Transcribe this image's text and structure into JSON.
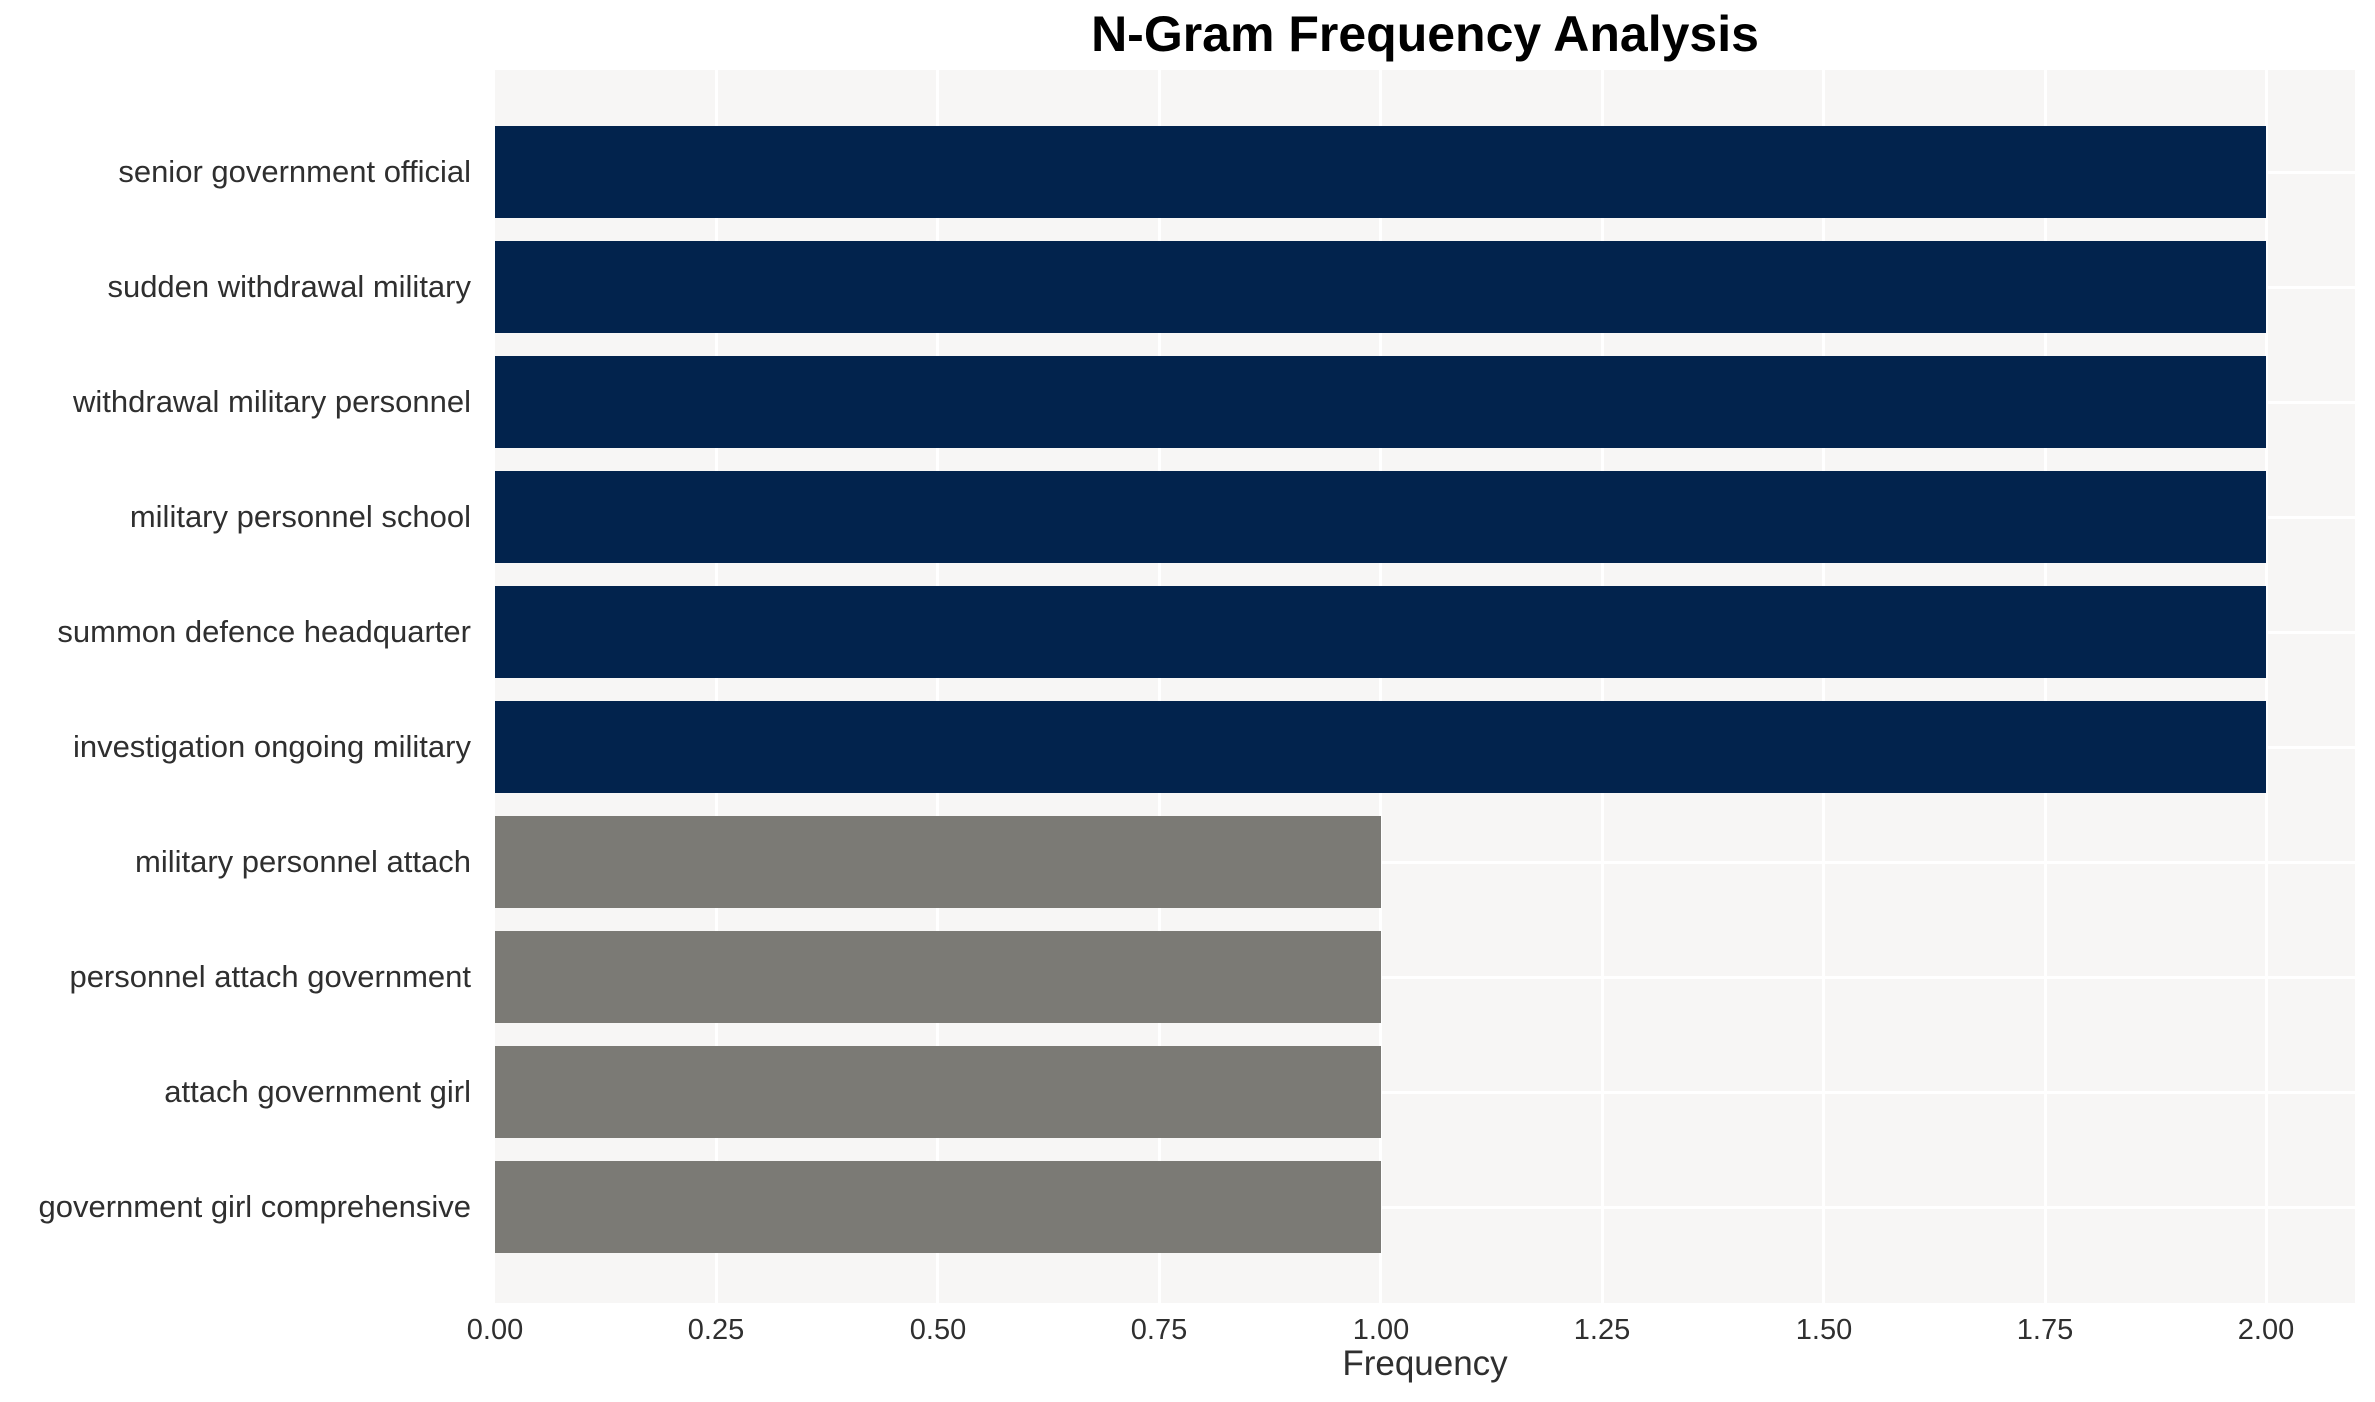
{
  "figure": {
    "background": "#ffffff"
  },
  "chart_data": {
    "type": "bar",
    "orientation": "horizontal",
    "title": "N-Gram Frequency Analysis",
    "xlabel": "Frequency",
    "ylabel": "",
    "categories": [
      "senior government official",
      "sudden withdrawal military",
      "withdrawal military personnel",
      "military personnel school",
      "summon defence headquarter",
      "investigation ongoing military",
      "military personnel attach",
      "personnel attach government",
      "attach government girl",
      "government girl comprehensive"
    ],
    "values": [
      2,
      2,
      2,
      2,
      2,
      2,
      1,
      1,
      1,
      1
    ],
    "bar_colors": [
      "#02234d",
      "#02234d",
      "#02234d",
      "#02234d",
      "#02234d",
      "#02234d",
      "#7b7a75",
      "#7b7a75",
      "#7b7a75",
      "#7b7a75"
    ],
    "color_meaning": {
      "frequency_2_bars": "#02234d",
      "frequency_1_bars": "#7b7a75"
    },
    "xlim": [
      0,
      2.1
    ],
    "xticks": [
      {
        "value": 0.0,
        "label": "0.00"
      },
      {
        "value": 0.25,
        "label": "0.25"
      },
      {
        "value": 0.5,
        "label": "0.50"
      },
      {
        "value": 0.75,
        "label": "0.75"
      },
      {
        "value": 1.0,
        "label": "1.00"
      },
      {
        "value": 1.25,
        "label": "1.25"
      },
      {
        "value": 1.5,
        "label": "1.50"
      },
      {
        "value": 1.75,
        "label": "1.75"
      },
      {
        "value": 2.0,
        "label": "2.00"
      }
    ],
    "grid": {
      "show": true,
      "color": "#ffffff",
      "vertical_at_xticks": true,
      "horizontal_at_category_centers": true
    },
    "plot_bgcolor": "#f7f6f5",
    "text_color": "#2f2f2f",
    "title_color": "#000000",
    "legend": "none"
  }
}
